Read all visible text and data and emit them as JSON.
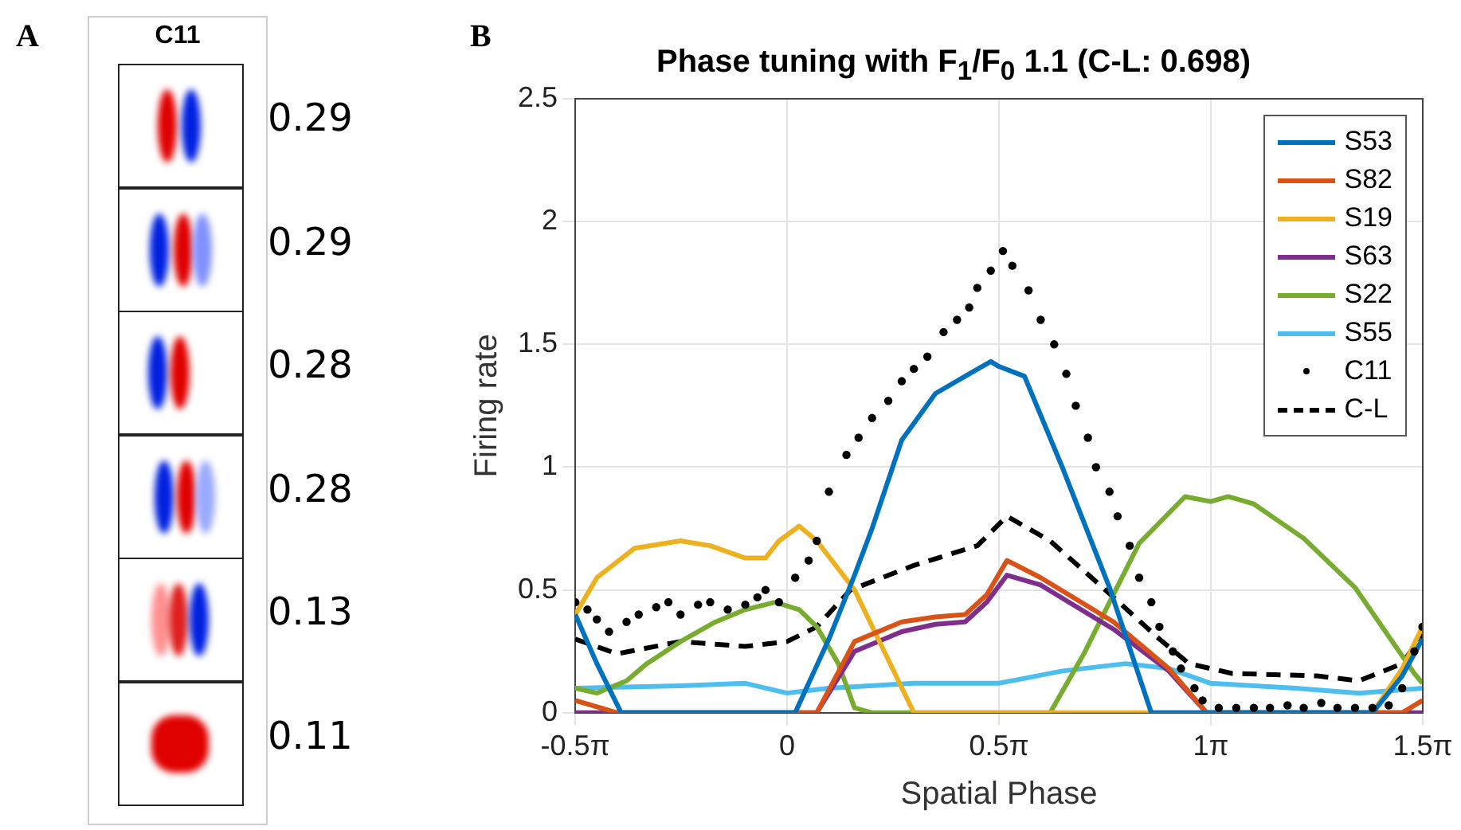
{
  "chart_data": [
    {
      "type": "other",
      "title": "C11",
      "annotations": [
        "A",
        "0.29",
        "0.29",
        "0.28",
        "0.28",
        "0.13",
        "0.11"
      ]
    },
    {
      "type": "line",
      "title": "Phase tuning with F$_{1}$/F$_{0}$ 1.1 (C-L: 0.698)",
      "xlabel": "Spatial Phase",
      "ylabel": "Firing rate",
      "annotations": [
        "B"
      ],
      "xlim": [
        -1.5708,
        4.7124
      ],
      "xticks": [
        {
          "value": -1.5708,
          "label": "-0.5π"
        },
        0,
        {
          "value": 1.5708,
          "label": "0.5π"
        },
        {
          "value": 3.1416,
          "label": "1π"
        },
        {
          "value": 4.7124,
          "label": "1.5π"
        }
      ],
      "ylim": [
        0,
        2.5
      ],
      "yticks": [
        0,
        0.5,
        1,
        1.5,
        2,
        2.5
      ],
      "grid": true,
      "legend": "top right",
      "series": [
        {
          "name": "S53",
          "color": "#0072bd",
          "x": [
            -1.57,
            -1.41,
            -1.23,
            0,
            0.06,
            0.31,
            0.5,
            0.63,
            0.85,
            1.1,
            1.32,
            1.51,
            1.57,
            1.76,
            2.04,
            2.39,
            2.7,
            4.34,
            4.56,
            4.71
          ],
          "values": [
            0.4,
            0.2,
            0,
            0,
            0,
            0.3,
            0.56,
            0.75,
            1.11,
            1.3,
            1.37,
            1.43,
            1.41,
            1.37,
            1,
            0.51,
            0,
            0,
            0.15,
            0.3
          ]
        },
        {
          "name": "S82",
          "color": "#d95319",
          "x": [
            -1.57,
            -1.26,
            0.22,
            0.5,
            0.85,
            1.1,
            1.32,
            1.48,
            1.63,
            1.88,
            2.42,
            2.83,
            3.11,
            4.56,
            4.71
          ],
          "values": [
            0.05,
            0,
            0,
            0.29,
            0.37,
            0.39,
            0.4,
            0.48,
            0.62,
            0.55,
            0.37,
            0.18,
            0,
            0,
            0.05
          ]
        },
        {
          "name": "S19",
          "color": "#edb120",
          "x": [
            -1.57,
            -1.41,
            -1.13,
            -0.79,
            -0.57,
            -0.31,
            -0.16,
            -0.06,
            0.09,
            0.22,
            0.5,
            0.72,
            0.94,
            4.34,
            4.56,
            4.71
          ],
          "values": [
            0.4,
            0.55,
            0.67,
            0.7,
            0.68,
            0.63,
            0.63,
            0.7,
            0.76,
            0.7,
            0.5,
            0.25,
            0,
            0,
            0.18,
            0.35
          ]
        },
        {
          "name": "S63",
          "color": "#7e2f8e",
          "x": [
            -1.57,
            0.22,
            0.5,
            0.85,
            1.1,
            1.32,
            1.48,
            1.63,
            1.88,
            2.42,
            2.83,
            3.11,
            4.71
          ],
          "values": [
            0,
            0,
            0.25,
            0.33,
            0.36,
            0.37,
            0.45,
            0.56,
            0.52,
            0.34,
            0.17,
            0,
            0
          ]
        },
        {
          "name": "S22",
          "color": "#77ac30",
          "x": [
            -1.57,
            -1.41,
            -1.19,
            -1.04,
            -0.79,
            -0.53,
            -0.31,
            -0.09,
            0.09,
            0.22,
            0.38,
            0.5,
            0.63,
            1.95,
            2.2,
            2.39,
            2.61,
            2.95,
            3.14,
            3.27,
            3.46,
            3.83,
            4.21,
            4.65,
            4.71
          ],
          "values": [
            0.1,
            0.08,
            0.13,
            0.2,
            0.29,
            0.37,
            0.42,
            0.45,
            0.42,
            0.35,
            0.2,
            0.02,
            0,
            0,
            0.24,
            0.45,
            0.69,
            0.88,
            0.86,
            0.88,
            0.85,
            0.71,
            0.51,
            0.16,
            0.12
          ]
        },
        {
          "name": "S55",
          "color": "#4dbeee",
          "x": [
            -1.57,
            -0.79,
            -0.31,
            0,
            0.31,
            0.94,
            1.57,
            2.04,
            2.51,
            2.83,
            3.14,
            3.77,
            4.24,
            4.71
          ],
          "values": [
            0.1,
            0.11,
            0.12,
            0.08,
            0.1,
            0.12,
            0.12,
            0.17,
            0.2,
            0.18,
            0.12,
            0.1,
            0.08,
            0.1
          ]
        },
        {
          "name": "C11",
          "type": "scatter",
          "marker": "circle",
          "color": "#000000",
          "x": [
            -1.57,
            -1.48,
            -1.41,
            -1.32,
            -1.19,
            -1.1,
            -0.97,
            -0.88,
            -0.79,
            -0.66,
            -0.57,
            -0.44,
            -0.31,
            -0.22,
            -0.16,
            -0.06,
            0.06,
            0.16,
            0.22,
            0.31,
            0.44,
            0.53,
            0.63,
            0.75,
            0.85,
            0.94,
            1.04,
            1.16,
            1.26,
            1.35,
            1.41,
            1.51,
            1.6,
            1.67,
            1.79,
            1.88,
            1.98,
            2.07,
            2.14,
            2.23,
            2.29,
            2.39,
            2.45,
            2.54,
            2.61,
            2.7,
            2.76,
            2.86,
            2.92,
            3.02,
            3.08,
            3.2,
            3.33,
            3.46,
            3.58,
            3.71,
            3.83,
            3.96,
            4.08,
            4.21,
            4.34,
            4.46,
            4.56,
            4.65,
            4.71
          ],
          "values": [
            0.45,
            0.42,
            0.38,
            0.33,
            0.37,
            0.4,
            0.43,
            0.45,
            0.4,
            0.44,
            0.45,
            0.42,
            0.44,
            0.47,
            0.5,
            0.45,
            0.55,
            0.62,
            0.7,
            0.9,
            1.05,
            1.12,
            1.2,
            1.27,
            1.35,
            1.4,
            1.45,
            1.55,
            1.6,
            1.65,
            1.73,
            1.8,
            1.88,
            1.82,
            1.72,
            1.6,
            1.5,
            1.38,
            1.25,
            1.12,
            1.0,
            0.9,
            0.8,
            0.68,
            0.55,
            0.45,
            0.35,
            0.25,
            0.18,
            0.1,
            0.05,
            0.02,
            0.02,
            0.02,
            0.02,
            0.03,
            0.02,
            0.04,
            0.02,
            0.02,
            0.02,
            0.03,
            0.1,
            0.25,
            0.35
          ]
        },
        {
          "name": "C-L",
          "line_style": "dashed",
          "color": "#000000",
          "x": [
            -1.57,
            -1.26,
            -0.79,
            -0.31,
            0,
            0.22,
            0.47,
            0.94,
            1.41,
            1.63,
            1.95,
            2.36,
            2.76,
            2.98,
            3.3,
            3.93,
            4.24,
            4.56,
            4.71
          ],
          "values": [
            0.3,
            0.24,
            0.29,
            0.27,
            0.29,
            0.35,
            0.5,
            0.6,
            0.68,
            0.8,
            0.7,
            0.5,
            0.3,
            0.2,
            0.16,
            0.15,
            0.13,
            0.2,
            0.32
          ]
        }
      ]
    }
  ]
}
